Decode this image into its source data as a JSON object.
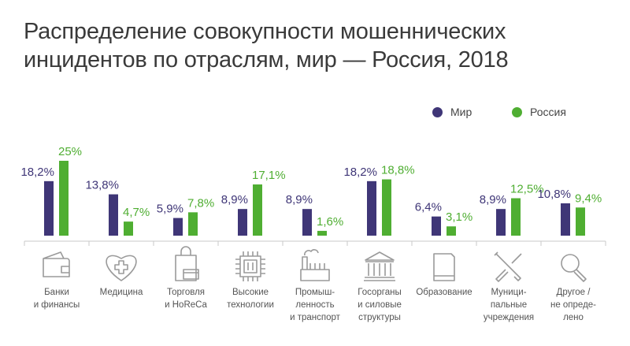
{
  "chart_data": {
    "type": "bar",
    "title": "Распределение совокупности мошеннических инцидентов по отраслям, мир — Россия, 2018",
    "title_lines": [
      "Распределение совокупности мошеннических",
      "инцидентов по отраслям, мир — Россия, 2018"
    ],
    "legend_position": "top-right",
    "colors": {
      "Мир": "#3f3677",
      "Россия": "#4fae32"
    },
    "categories": [
      {
        "lines": [
          "Банки",
          "и финансы"
        ],
        "icon": "wallet-icon"
      },
      {
        "lines": [
          "Медицина"
        ],
        "icon": "heart-cross-icon"
      },
      {
        "lines": [
          "Торговля",
          "и HoReCa"
        ],
        "icon": "shopping-bag-icon"
      },
      {
        "lines": [
          "Высокие",
          "технологии"
        ],
        "icon": "chip-icon"
      },
      {
        "lines": [
          "Промыш-",
          "ленность",
          "и транспорт"
        ],
        "icon": "factory-icon"
      },
      {
        "lines": [
          "Госорганы",
          "и силовые",
          "структуры"
        ],
        "icon": "government-building-icon"
      },
      {
        "lines": [
          "Образование"
        ],
        "icon": "book-icon"
      },
      {
        "lines": [
          "Муници-",
          "пальные",
          "учреждения"
        ],
        "icon": "tools-icon"
      },
      {
        "lines": [
          "Другое /",
          "не опреде-",
          "лено"
        ],
        "icon": "magnifier-icon"
      }
    ],
    "series": [
      {
        "name": "Мир",
        "values": [
          18.2,
          13.8,
          5.9,
          8.9,
          8.9,
          18.2,
          6.4,
          8.9,
          10.8
        ],
        "labels": [
          "18,2%",
          "13,8%",
          "5,9%",
          "8,9%",
          "8,9%",
          "18,2%",
          "6,4%",
          "8,9%",
          "10,8%"
        ]
      },
      {
        "name": "Россия",
        "values": [
          25,
          4.7,
          7.8,
          17.1,
          1.6,
          18.8,
          3.1,
          12.5,
          9.4
        ],
        "labels": [
          "25%",
          "4,7%",
          "7,8%",
          "17,1%",
          "1,6%",
          "18,8%",
          "3,1%",
          "12,5%",
          "9,4%"
        ]
      }
    ],
    "ylim": [
      0,
      25
    ],
    "grid": false
  }
}
